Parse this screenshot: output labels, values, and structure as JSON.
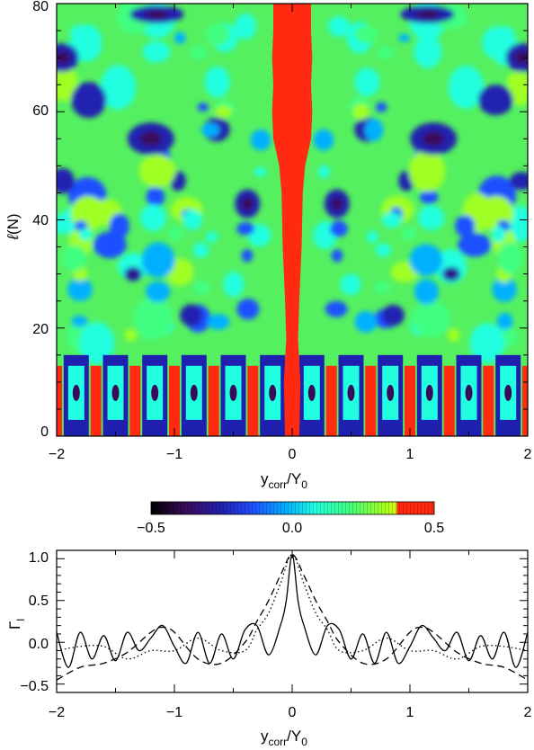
{
  "chart_data": [
    {
      "type": "heatmap",
      "xlabel": {
        "main": "y",
        "sub": "corr",
        "slash": "/Y",
        "sub2": "0"
      },
      "ylabel": {
        "main": "ℓ",
        "paren": "(N)"
      },
      "xlim": [
        -2,
        2
      ],
      "ylim": [
        0,
        80
      ],
      "x_ticks": [
        "−2",
        "−1",
        "0",
        "1",
        "2"
      ],
      "y_ticks": [
        "0",
        "20",
        "40",
        "60",
        "80"
      ],
      "colorbar": {
        "range": [
          -0.5,
          0.5
        ],
        "ticks": [
          "−0.5",
          "0.0",
          "0.5"
        ],
        "colormap": [
          "#000000",
          "#3a0a5a",
          "#2020b0",
          "#1e50ff",
          "#00b0ff",
          "#20ffe0",
          "#40ff80",
          "#a0ff20",
          "#ff2a10"
        ]
      }
    },
    {
      "type": "line",
      "ylabel": {
        "main": "Γ",
        "sub": "l"
      },
      "xlabel": {
        "main": "y",
        "sub": "corr",
        "slash": "/Y",
        "sub2": "0"
      },
      "xlim": [
        -2,
        2
      ],
      "ylim": [
        -0.6,
        1.1
      ],
      "x_ticks": [
        "−2",
        "−1",
        "0",
        "1",
        "2"
      ],
      "y_ticks": [
        "−0.5",
        "0.0",
        "0.5",
        "1.0"
      ],
      "series": [
        {
          "style": "solid",
          "x": [
            -2,
            -1.9,
            -1.8,
            -1.7,
            -1.6,
            -1.5,
            -1.4,
            -1.3,
            -1.2,
            -1.1,
            -1.0,
            -0.9,
            -0.8,
            -0.7,
            -0.6,
            -0.5,
            -0.4,
            -0.3,
            -0.2,
            -0.1,
            -0.05,
            0,
            0.05,
            0.1,
            0.2,
            0.3,
            0.4,
            0.5,
            0.6,
            0.7,
            0.8,
            0.9,
            1.0,
            1.1,
            1.2,
            1.3,
            1.4,
            1.5,
            1.6,
            1.7,
            1.8,
            1.9,
            2.0
          ],
          "y": [
            0.12,
            -0.3,
            0.12,
            -0.2,
            0.08,
            -0.22,
            0.12,
            -0.1,
            0.05,
            0.2,
            -0.05,
            -0.25,
            0.12,
            -0.25,
            0.1,
            -0.2,
            0.15,
            0.2,
            -0.15,
            0.2,
            0.5,
            1.05,
            0.5,
            0.2,
            -0.15,
            0.2,
            0.15,
            -0.2,
            0.1,
            -0.25,
            0.12,
            -0.25,
            -0.05,
            0.2,
            0.05,
            -0.1,
            0.12,
            -0.22,
            0.08,
            -0.2,
            0.12,
            -0.3,
            0.12
          ]
        },
        {
          "style": "dashed",
          "x": [
            -2,
            -1.8,
            -1.6,
            -1.4,
            -1.2,
            -1.1,
            -1.0,
            -0.8,
            -0.6,
            -0.4,
            -0.3,
            -0.2,
            -0.1,
            0,
            0.1,
            0.2,
            0.3,
            0.4,
            0.6,
            0.8,
            1.0,
            1.1,
            1.2,
            1.4,
            1.6,
            1.8,
            2.0
          ],
          "y": [
            -0.45,
            -0.3,
            -0.25,
            -0.12,
            0.12,
            0.18,
            0.12,
            -0.2,
            -0.25,
            0.0,
            0.25,
            0.5,
            0.8,
            1.05,
            0.8,
            0.5,
            0.25,
            0.0,
            -0.25,
            -0.2,
            0.12,
            0.18,
            0.12,
            -0.12,
            -0.25,
            -0.3,
            -0.45
          ]
        },
        {
          "style": "dotted",
          "x": [
            -2,
            -1.8,
            -1.6,
            -1.4,
            -1.2,
            -1.0,
            -0.8,
            -0.6,
            -0.4,
            -0.3,
            -0.2,
            -0.1,
            0,
            0.1,
            0.2,
            0.3,
            0.4,
            0.6,
            0.8,
            1.0,
            1.2,
            1.4,
            1.6,
            1.8,
            2.0
          ],
          "y": [
            -0.1,
            -0.05,
            -0.05,
            -0.2,
            -0.1,
            -0.1,
            0.05,
            -0.1,
            -0.1,
            0.15,
            0.35,
            0.7,
            1.05,
            0.7,
            0.35,
            0.15,
            -0.1,
            -0.1,
            0.05,
            -0.1,
            -0.1,
            -0.2,
            -0.05,
            -0.05,
            -0.1
          ]
        }
      ]
    }
  ]
}
